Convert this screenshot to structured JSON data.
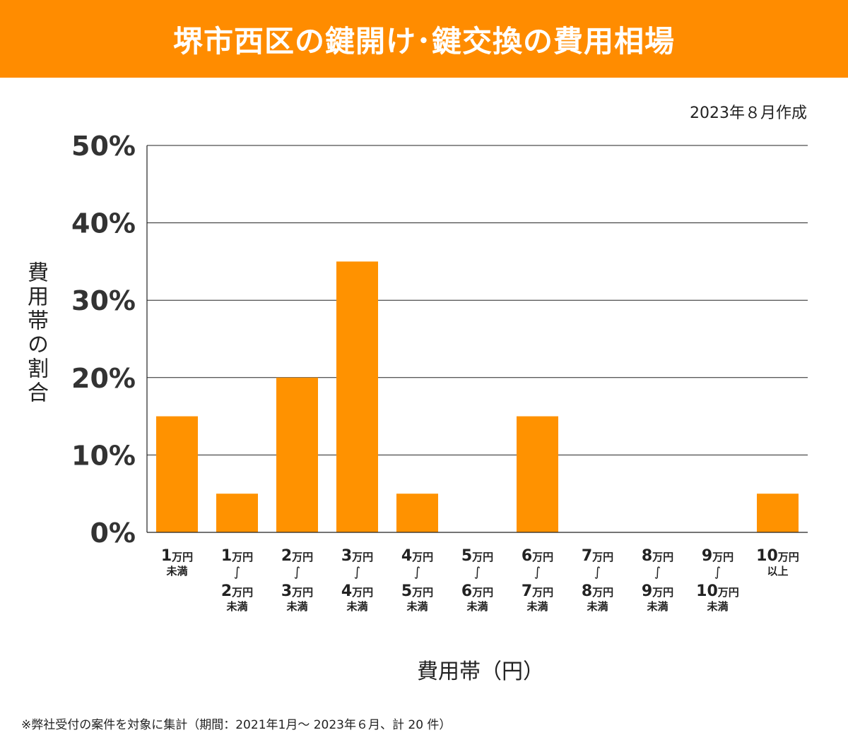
{
  "header": {
    "title": "堺市西区の鍵開け･鍵交換の費用相場",
    "bg_color": "#FF8C00"
  },
  "created_date": "2023年８月作成",
  "colors": {
    "bar": "#FF9200",
    "grid": "#222222"
  },
  "chart_data": {
    "type": "bar",
    "title": "堺市西区の鍵開け･鍵交換の費用相場",
    "xlabel": "費用帯（円）",
    "ylabel": "費用帯の割合",
    "ylim": [
      0,
      50
    ],
    "yticks": [
      "0%",
      "10%",
      "20%",
      "30%",
      "40%",
      "50%"
    ],
    "ytick_values": [
      0,
      10,
      20,
      30,
      40,
      50
    ],
    "grid": true,
    "categories": [
      {
        "label_lines": [
          {
            "num": "1",
            "unit": "万円"
          },
          {
            "suffix": "未満"
          }
        ]
      },
      {
        "label_lines": [
          {
            "num": "1",
            "unit": "万円"
          },
          {
            "tilde": "∫"
          },
          {
            "num": "2",
            "unit": "万円"
          },
          {
            "suffix": "未満"
          }
        ]
      },
      {
        "label_lines": [
          {
            "num": "2",
            "unit": "万円"
          },
          {
            "tilde": "∫"
          },
          {
            "num": "3",
            "unit": "万円"
          },
          {
            "suffix": "未満"
          }
        ]
      },
      {
        "label_lines": [
          {
            "num": "3",
            "unit": "万円"
          },
          {
            "tilde": "∫"
          },
          {
            "num": "4",
            "unit": "万円"
          },
          {
            "suffix": "未満"
          }
        ]
      },
      {
        "label_lines": [
          {
            "num": "4",
            "unit": "万円"
          },
          {
            "tilde": "∫"
          },
          {
            "num": "5",
            "unit": "万円"
          },
          {
            "suffix": "未満"
          }
        ]
      },
      {
        "label_lines": [
          {
            "num": "5",
            "unit": "万円"
          },
          {
            "tilde": "∫"
          },
          {
            "num": "6",
            "unit": "万円"
          },
          {
            "suffix": "未満"
          }
        ]
      },
      {
        "label_lines": [
          {
            "num": "6",
            "unit": "万円"
          },
          {
            "tilde": "∫"
          },
          {
            "num": "7",
            "unit": "万円"
          },
          {
            "suffix": "未満"
          }
        ]
      },
      {
        "label_lines": [
          {
            "num": "7",
            "unit": "万円"
          },
          {
            "tilde": "∫"
          },
          {
            "num": "8",
            "unit": "万円"
          },
          {
            "suffix": "未満"
          }
        ]
      },
      {
        "label_lines": [
          {
            "num": "8",
            "unit": "万円"
          },
          {
            "tilde": "∫"
          },
          {
            "num": "9",
            "unit": "万円"
          },
          {
            "suffix": "未満"
          }
        ]
      },
      {
        "label_lines": [
          {
            "num": "9",
            "unit": "万円"
          },
          {
            "tilde": "∫"
          },
          {
            "num": "10",
            "unit": "万円"
          },
          {
            "suffix": "未満"
          }
        ]
      },
      {
        "label_lines": [
          {
            "num": "10",
            "unit": "万円"
          },
          {
            "suffix": "以上"
          }
        ]
      }
    ],
    "values": [
      15,
      5,
      20,
      35,
      5,
      0,
      15,
      0,
      0,
      0,
      5
    ]
  },
  "footnote": "※弊社受付の案件を対象に集計（期間：2021年1月～ 2023年６月、計 20 件）"
}
